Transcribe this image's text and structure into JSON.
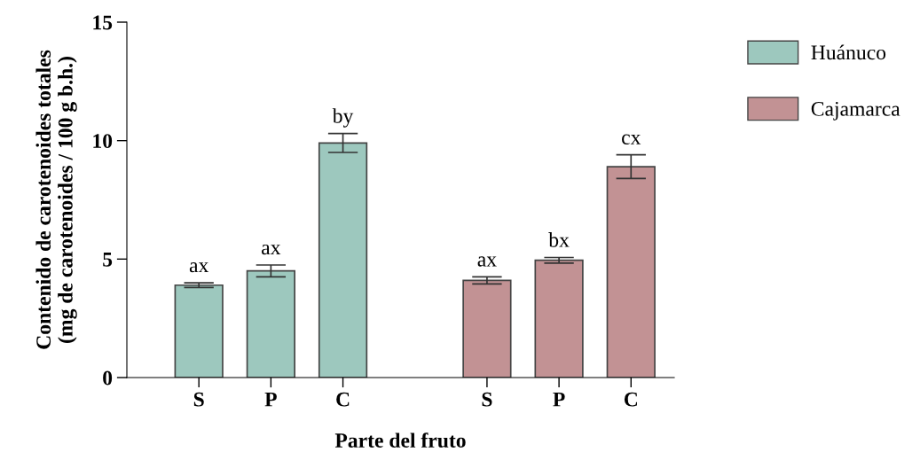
{
  "chart_data": {
    "type": "bar",
    "xlabel": "Parte del fruto",
    "ylabel": "Contenido de carotenoides totales\n(mg de carotenoides / 100 g b.h.)",
    "categories": [
      "S",
      "P",
      "C",
      null,
      "S",
      "P",
      "C"
    ],
    "series": [
      {
        "name": "Huánuco",
        "color": "#9dc8be",
        "values": [
          3.9,
          4.5,
          9.9,
          null,
          null,
          null,
          null
        ],
        "errors": [
          0.1,
          0.25,
          0.4,
          null,
          null,
          null,
          null
        ],
        "value_labels": [
          "ax",
          "ax",
          "by",
          null,
          null,
          null,
          null
        ]
      },
      {
        "name": "Cajamarca",
        "color": "#c29294",
        "values": [
          null,
          null,
          null,
          null,
          4.1,
          4.95,
          8.9
        ],
        "errors": [
          null,
          null,
          null,
          null,
          0.15,
          0.12,
          0.5
        ],
        "value_labels": [
          null,
          null,
          null,
          null,
          "ax",
          "bx",
          "cx"
        ]
      }
    ],
    "ylim": [
      0,
      15
    ],
    "yticks": [
      0,
      5,
      10,
      15
    ],
    "legend": "right",
    "grid": false
  }
}
